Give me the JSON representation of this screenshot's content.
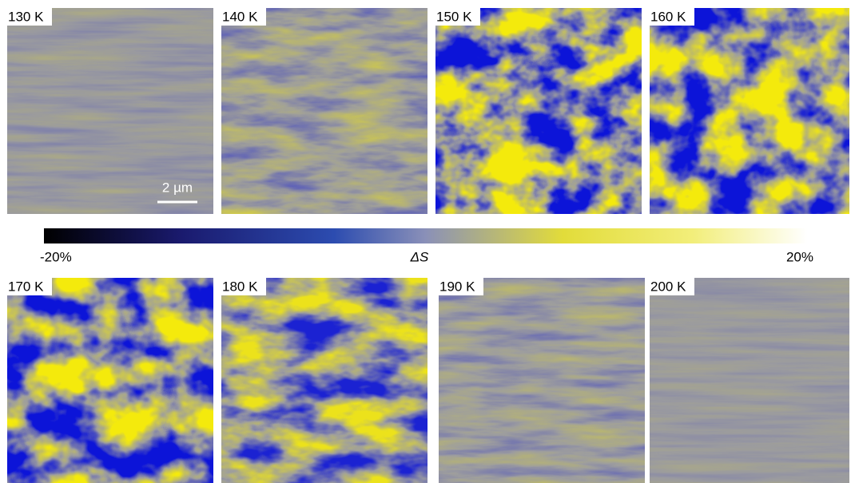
{
  "panel_labels": [
    "130 K",
    "140 K",
    "150 K",
    "160 K",
    "170 K",
    "180 K",
    "190 K",
    "200 K"
  ],
  "scale_bar": "2 µm",
  "colorbar": {
    "min_label": "-20%",
    "center_label": "ΔS",
    "max_label": "20%"
  }
}
